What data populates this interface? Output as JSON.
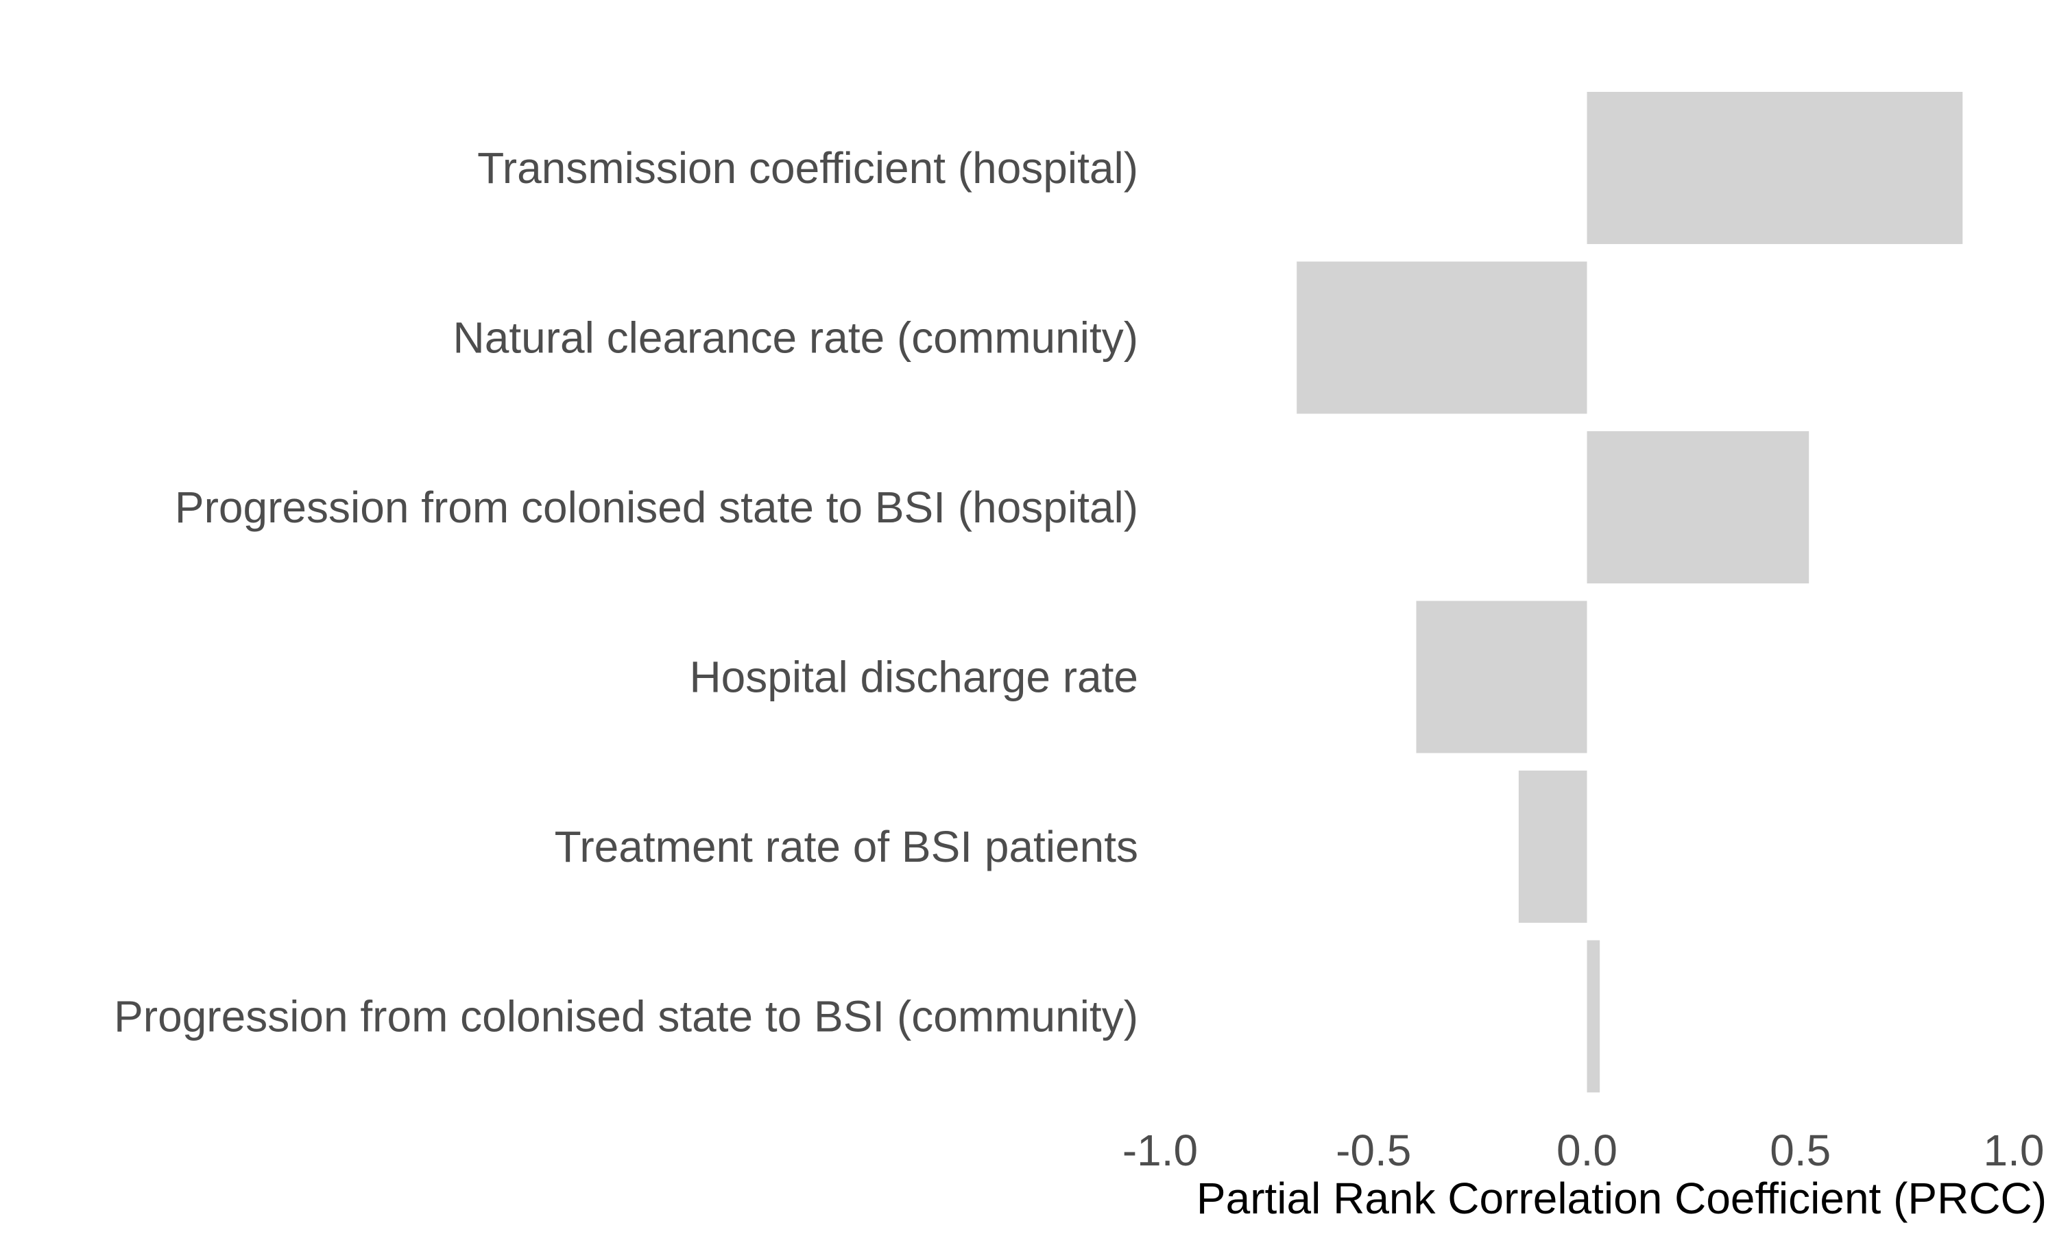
{
  "chart_data": {
    "type": "bar",
    "orientation": "horizontal",
    "categories": [
      "Transmission coefficient (hospital)",
      "Natural clearance rate (community)",
      "Progression from colonised state to BSI (hospital)",
      "Hospital discharge rate",
      "Treatment rate of BSI patients",
      "Progression from colonised state to BSI (community)"
    ],
    "values": [
      0.88,
      -0.68,
      0.52,
      -0.4,
      -0.16,
      0.03
    ],
    "title": "",
    "xlabel": "Partial Rank Correlation Coefficient (PRCC)",
    "ylabel": "",
    "xlim": [
      -1.0,
      1.0
    ],
    "xticks": [
      -1.0,
      -0.5,
      0.0,
      0.5,
      1.0
    ],
    "xtick_labels": [
      "-1.0",
      "-0.5",
      "0.0",
      "0.5",
      "1.0"
    ],
    "grid": false,
    "legend": "none",
    "bar_color": "#d3d3d3"
  }
}
